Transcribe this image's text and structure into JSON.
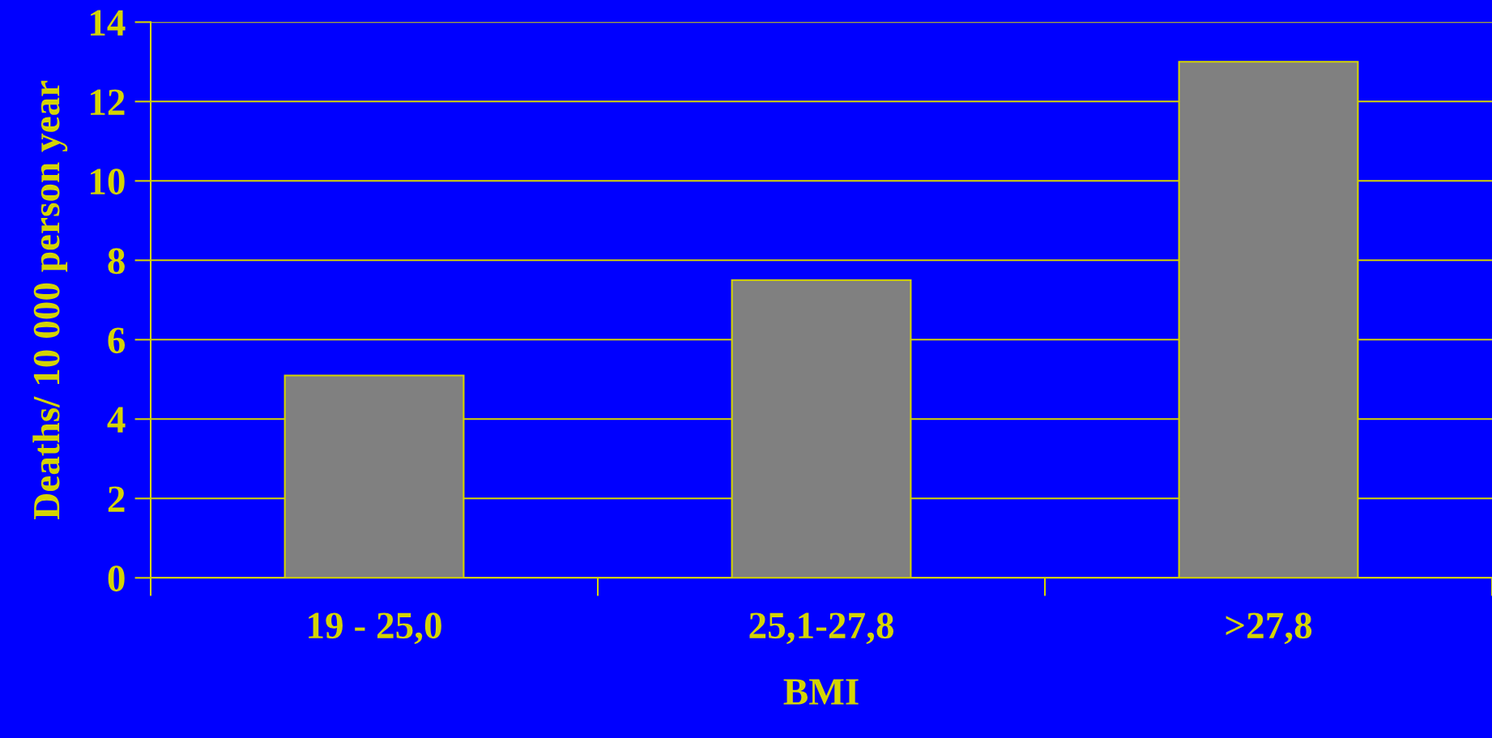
{
  "chart_data": {
    "type": "bar",
    "xlabel": "BMI",
    "ylabel": "Deaths/ 10 000 person year",
    "categories": [
      "19 - 25,0",
      "25,1-27,8",
      ">27,8"
    ],
    "values": [
      5.1,
      7.5,
      13.0
    ],
    "color": "#808080",
    "ylim": [
      0,
      14
    ],
    "yticks": [
      0,
      2,
      4,
      6,
      8,
      10,
      12,
      14
    ],
    "grid": "y",
    "legend": false
  }
}
